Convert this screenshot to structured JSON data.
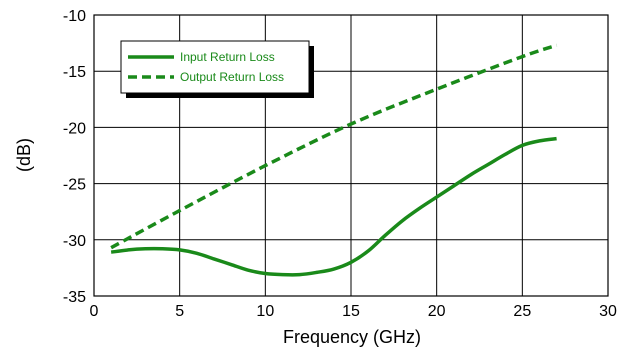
{
  "chart_data": {
    "type": "line",
    "title": "",
    "xlabel": "Frequency (GHz)",
    "ylabel": "(dB)",
    "xlim": [
      0,
      30
    ],
    "ylim": [
      -35,
      -10
    ],
    "x_ticks": [
      0,
      5,
      10,
      15,
      20,
      25,
      30
    ],
    "y_ticks": [
      -35,
      -30,
      -25,
      -20,
      -15,
      -10
    ],
    "x_tick_labels": [
      "0",
      "5",
      "10",
      "15",
      "20",
      "25",
      "30"
    ],
    "y_tick_labels": [
      "-35",
      "-30",
      "-25",
      "-20",
      "-15",
      "-10"
    ],
    "grid": true,
    "legend_position": "top-left",
    "series_color": "#1a8a1a",
    "series": [
      {
        "name": "Input Return Loss",
        "line_style": "solid",
        "x": [
          1,
          2,
          3,
          4,
          5,
          6,
          7,
          8,
          9,
          10,
          11,
          12,
          13,
          14,
          15,
          16,
          17,
          18,
          19,
          20,
          21,
          22,
          23,
          24,
          25,
          26,
          27
        ],
        "y": [
          -31.1,
          -30.9,
          -30.8,
          -30.8,
          -30.9,
          -31.2,
          -31.7,
          -32.2,
          -32.7,
          -33.0,
          -33.1,
          -33.1,
          -32.9,
          -32.6,
          -32.0,
          -31.0,
          -29.6,
          -28.3,
          -27.2,
          -26.2,
          -25.2,
          -24.2,
          -23.3,
          -22.4,
          -21.6,
          -21.2,
          -21.0
        ]
      },
      {
        "name": "Output Return Loss",
        "line_style": "dashed",
        "x": [
          1,
          5,
          10,
          15,
          20,
          25,
          27
        ],
        "y": [
          -30.7,
          -27.4,
          -23.4,
          -19.7,
          -16.6,
          -13.7,
          -12.7
        ]
      }
    ]
  }
}
